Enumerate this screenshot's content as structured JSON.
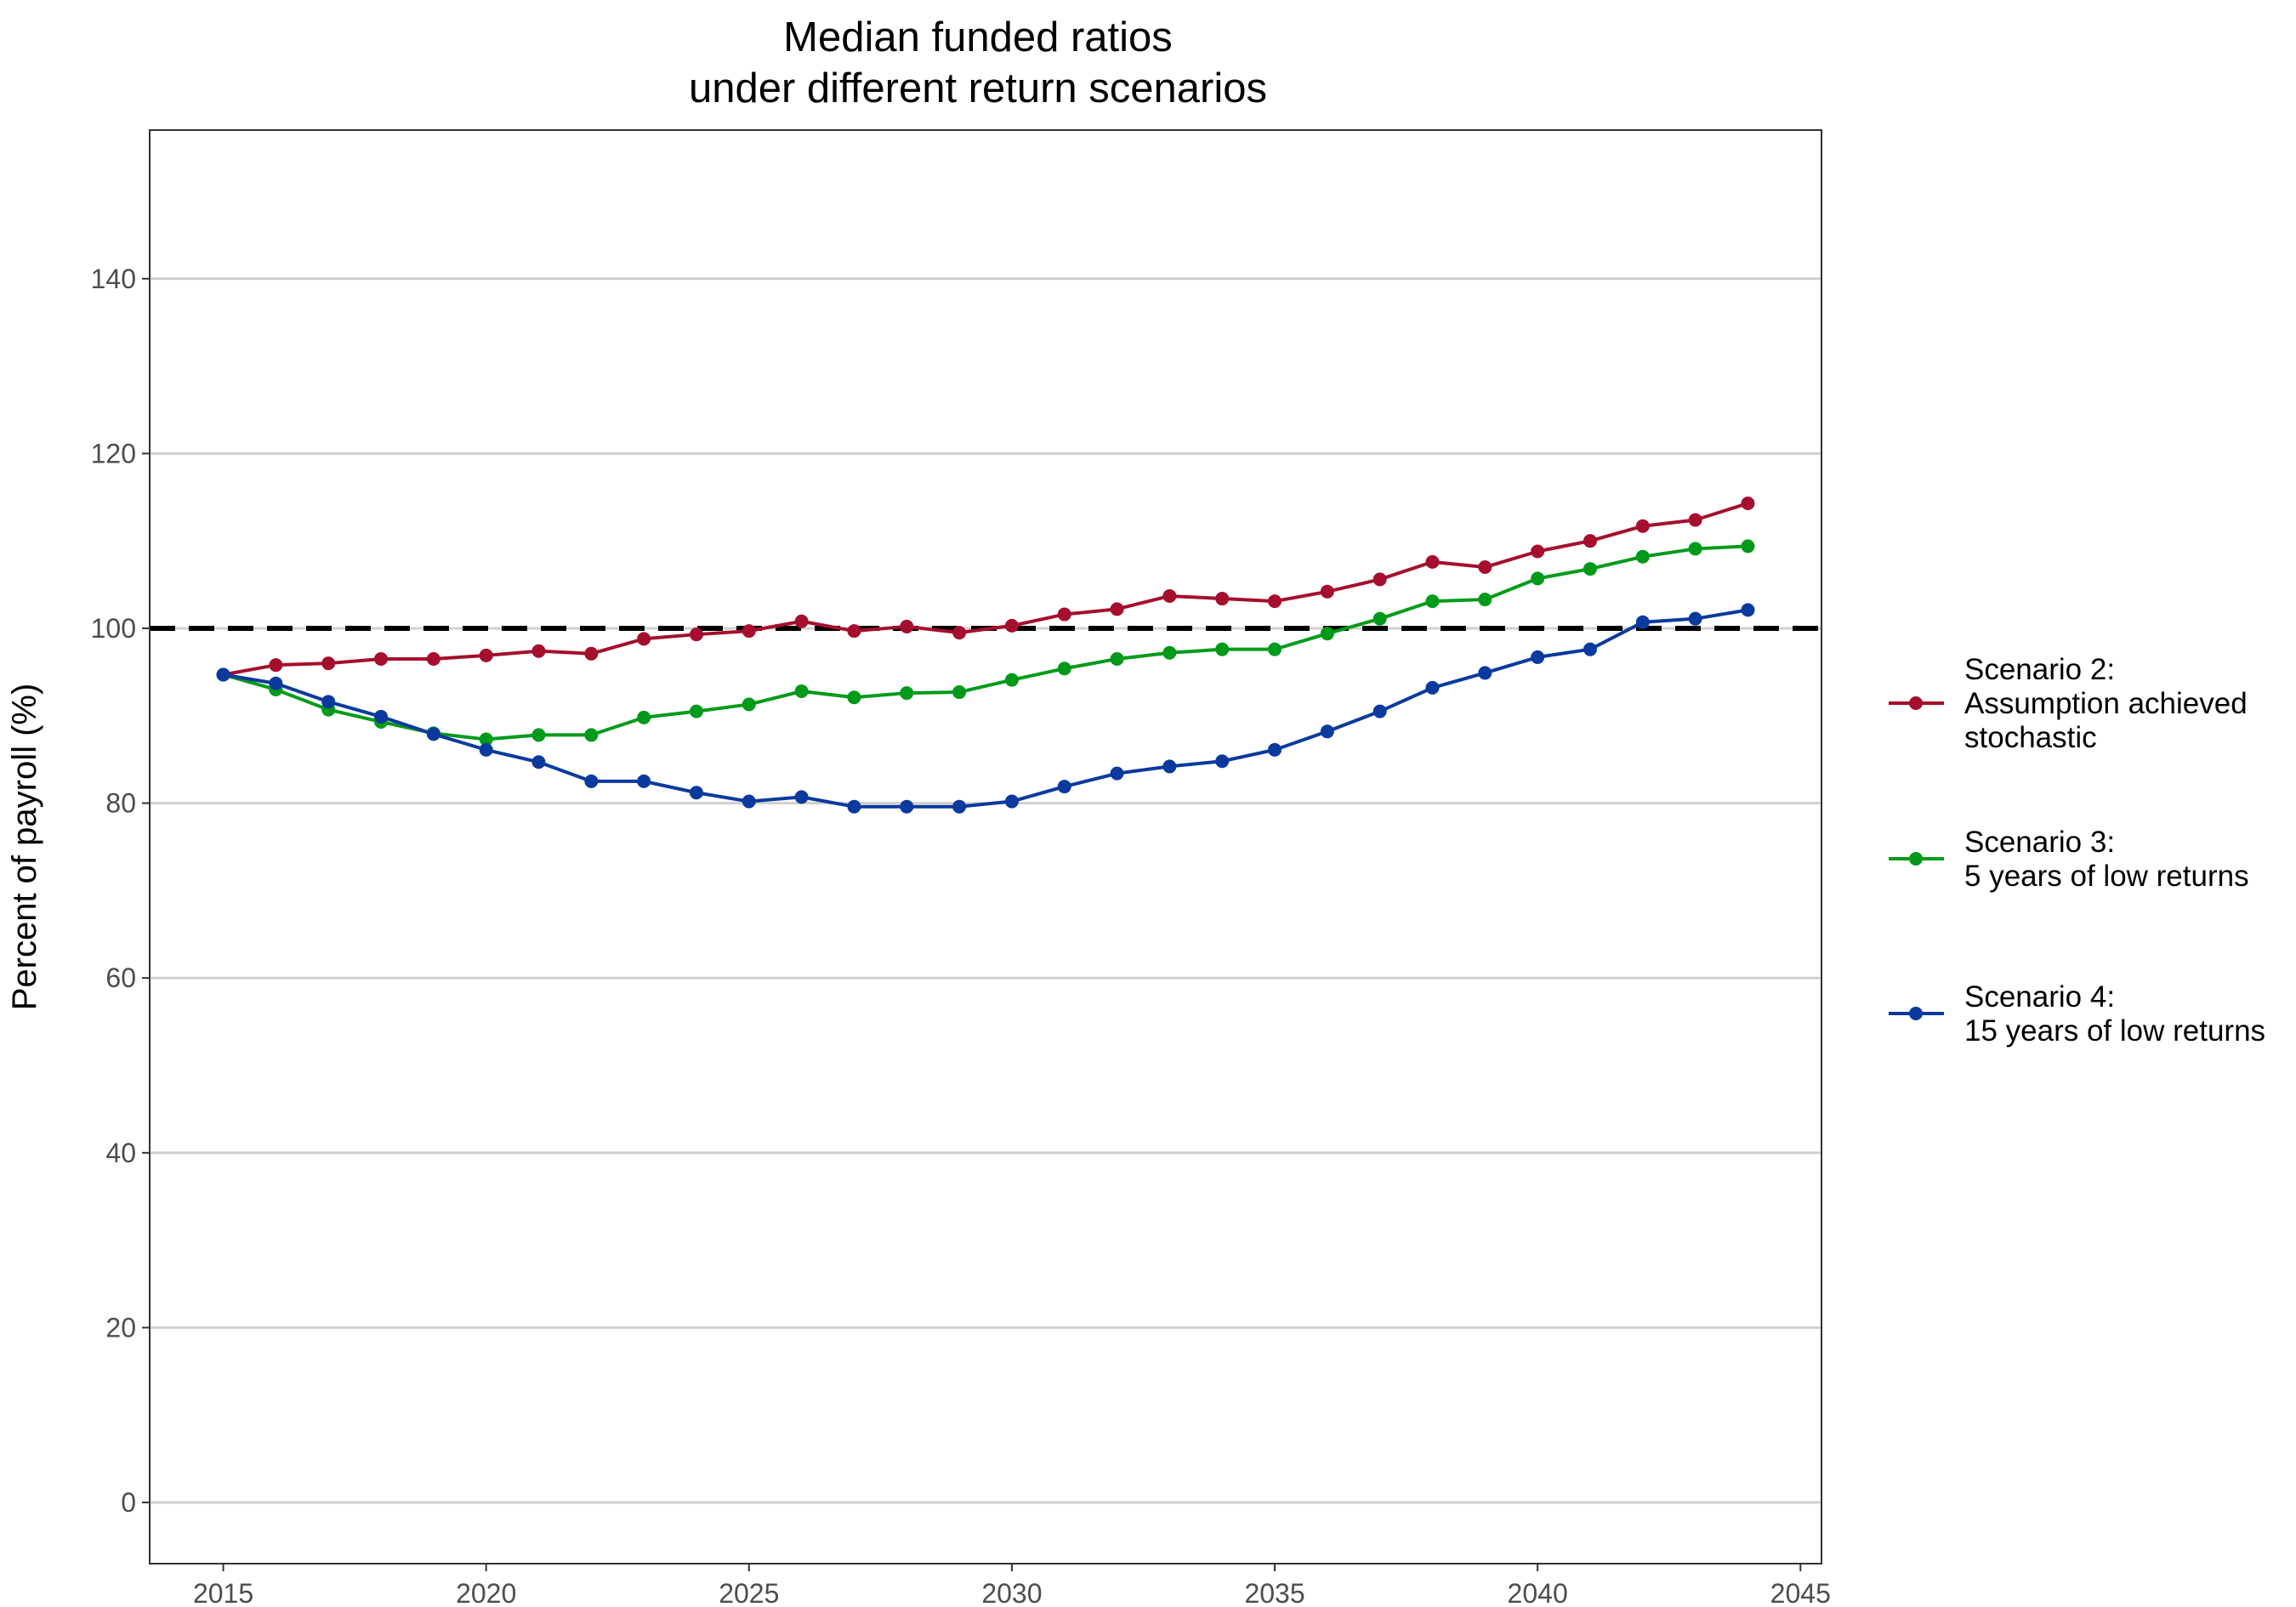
{
  "chart_data": {
    "type": "line",
    "title_lines": [
      "Median funded ratios",
      "under different return scenarios"
    ],
    "xlabel": "",
    "ylabel": "Percent of payroll (%)",
    "xlim": [
      2013.6,
      2045.4
    ],
    "ylim": [
      -7,
      157
    ],
    "x_ticks": [
      2015,
      2020,
      2025,
      2030,
      2035,
      2040,
      2045
    ],
    "y_ticks": [
      0,
      20,
      40,
      60,
      80,
      100,
      120,
      140
    ],
    "grid": "horizontal major",
    "reference_line": {
      "y": 100,
      "style": "dashed",
      "color": "#000000"
    },
    "legend_position": "right",
    "x": [
      2015,
      2016,
      2017,
      2018,
      2019,
      2020,
      2021,
      2022,
      2023,
      2024,
      2025,
      2026,
      2027,
      2028,
      2029,
      2030,
      2031,
      2032,
      2033,
      2034,
      2035,
      2036,
      2037,
      2038,
      2039,
      2040,
      2041,
      2042,
      2043,
      2044
    ],
    "series": [
      {
        "name_lines": [
          "Scenario 2:",
          "Assumption achieved",
          "stochastic"
        ],
        "color": "#a50f2d",
        "values": [
          94.7,
          95.8,
          96.0,
          96.5,
          96.5,
          96.9,
          97.4,
          97.1,
          98.8,
          99.3,
          99.7,
          100.8,
          99.7,
          100.2,
          99.5,
          100.3,
          101.6,
          102.2,
          103.7,
          103.4,
          103.1,
          104.2,
          105.6,
          107.6,
          107.0,
          108.8,
          110.0,
          111.7,
          112.4,
          114.3
        ]
      },
      {
        "name_lines": [
          "Scenario 3:",
          "5 years of low returns"
        ],
        "color": "#009a1a",
        "values": [
          94.7,
          93.0,
          90.7,
          89.3,
          88.0,
          87.3,
          87.8,
          87.8,
          89.8,
          90.5,
          91.3,
          92.8,
          92.1,
          92.6,
          92.7,
          94.1,
          95.4,
          96.5,
          97.2,
          97.6,
          97.6,
          99.4,
          101.1,
          103.1,
          103.3,
          105.7,
          106.8,
          108.2,
          109.1,
          109.4
        ]
      },
      {
        "name_lines": [
          "Scenario 4:",
          "15 years of low returns"
        ],
        "color": "#0a3a9e",
        "values": [
          94.7,
          93.7,
          91.6,
          89.9,
          87.9,
          86.1,
          84.7,
          82.5,
          82.5,
          81.2,
          80.2,
          80.7,
          79.6,
          79.6,
          79.6,
          80.2,
          81.9,
          83.4,
          84.2,
          84.8,
          86.1,
          88.2,
          90.5,
          93.2,
          94.9,
          96.7,
          97.6,
          100.7,
          101.1,
          102.1
        ]
      }
    ]
  }
}
